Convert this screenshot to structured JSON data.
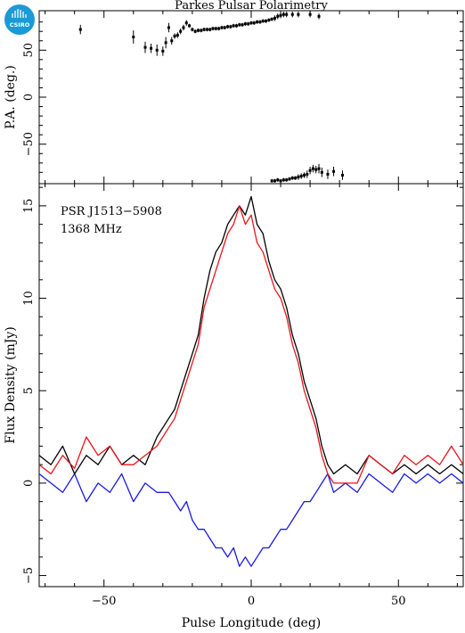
{
  "title": "Parkes Pulsar Polarimetry",
  "logo": {
    "text": "CSIRO",
    "color": "#1a9ad6"
  },
  "colors": {
    "total": "#000000",
    "linear": "#e8141b",
    "circular": "#1a1adf"
  },
  "chart_data": [
    {
      "type": "scatter",
      "title": "Parkes Pulsar Polarimetry",
      "xlabel": "",
      "ylabel": "P.A. (deg.)",
      "xlim": [
        -72,
        72
      ],
      "ylim": [
        -92,
        92
      ],
      "yticks": [
        -50,
        0,
        50
      ],
      "ytick_labels": [
        "−50",
        "0",
        "50"
      ],
      "points": [
        {
          "x": -58,
          "y": 72,
          "err": 5
        },
        {
          "x": -40,
          "y": 64,
          "err": 7
        },
        {
          "x": -36,
          "y": 53,
          "err": 6
        },
        {
          "x": -34,
          "y": 52,
          "err": 5
        },
        {
          "x": -32,
          "y": 50,
          "err": 6
        },
        {
          "x": -30,
          "y": 49,
          "err": 5
        },
        {
          "x": -29,
          "y": 58,
          "err": 6
        },
        {
          "x": -28,
          "y": 74,
          "err": 5
        },
        {
          "x": -27,
          "y": 60,
          "err": 4
        },
        {
          "x": -26,
          "y": 65,
          "err": 3
        },
        {
          "x": -25,
          "y": 66,
          "err": 3
        },
        {
          "x": -24,
          "y": 70,
          "err": 3
        },
        {
          "x": -23,
          "y": 74,
          "err": 3
        },
        {
          "x": -22,
          "y": 79,
          "err": 3
        },
        {
          "x": -21,
          "y": 76,
          "err": 2
        },
        {
          "x": -20,
          "y": 72,
          "err": 2
        },
        {
          "x": -19,
          "y": 70,
          "err": 2
        },
        {
          "x": -18,
          "y": 71,
          "err": 2
        },
        {
          "x": -17,
          "y": 71,
          "err": 2
        },
        {
          "x": -16,
          "y": 72,
          "err": 2
        },
        {
          "x": -15,
          "y": 72,
          "err": 2
        },
        {
          "x": -14,
          "y": 72,
          "err": 2
        },
        {
          "x": -13,
          "y": 73,
          "err": 2
        },
        {
          "x": -12,
          "y": 73,
          "err": 2
        },
        {
          "x": -11,
          "y": 73,
          "err": 2
        },
        {
          "x": -10,
          "y": 74,
          "err": 2
        },
        {
          "x": -9,
          "y": 74,
          "err": 2
        },
        {
          "x": -8,
          "y": 75,
          "err": 2
        },
        {
          "x": -7,
          "y": 75,
          "err": 2
        },
        {
          "x": -6,
          "y": 76,
          "err": 2
        },
        {
          "x": -5,
          "y": 76,
          "err": 2
        },
        {
          "x": -4,
          "y": 77,
          "err": 2
        },
        {
          "x": -3,
          "y": 77,
          "err": 2
        },
        {
          "x": -2,
          "y": 78,
          "err": 2
        },
        {
          "x": -1,
          "y": 78,
          "err": 2
        },
        {
          "x": 0,
          "y": 79,
          "err": 2
        },
        {
          "x": 1,
          "y": 79,
          "err": 2
        },
        {
          "x": 2,
          "y": 80,
          "err": 2
        },
        {
          "x": 3,
          "y": 80,
          "err": 2
        },
        {
          "x": 4,
          "y": 81,
          "err": 2
        },
        {
          "x": 5,
          "y": 81,
          "err": 2
        },
        {
          "x": 6,
          "y": 82,
          "err": 2
        },
        {
          "x": 7,
          "y": 83,
          "err": 2
        },
        {
          "x": 8,
          "y": 84,
          "err": 3
        },
        {
          "x": 9,
          "y": 86,
          "err": 3
        },
        {
          "x": 10,
          "y": 87,
          "err": 3
        },
        {
          "x": 11,
          "y": 88,
          "err": 3
        },
        {
          "x": 12,
          "y": 88,
          "err": 3
        },
        {
          "x": 14,
          "y": 88,
          "err": 3
        },
        {
          "x": 16,
          "y": 88,
          "err": 3
        },
        {
          "x": 20,
          "y": 88,
          "err": 3
        },
        {
          "x": 23,
          "y": 86,
          "err": 3
        },
        {
          "x": 7,
          "y": -89,
          "err": 2
        },
        {
          "x": 8,
          "y": -89,
          "err": 2
        },
        {
          "x": 9,
          "y": -88,
          "err": 2
        },
        {
          "x": 10,
          "y": -89,
          "err": 2
        },
        {
          "x": 11,
          "y": -88,
          "err": 2
        },
        {
          "x": 12,
          "y": -88,
          "err": 2
        },
        {
          "x": 13,
          "y": -87,
          "err": 2
        },
        {
          "x": 14,
          "y": -86,
          "err": 2
        },
        {
          "x": 15,
          "y": -86,
          "err": 2
        },
        {
          "x": 16,
          "y": -85,
          "err": 3
        },
        {
          "x": 17,
          "y": -84,
          "err": 3
        },
        {
          "x": 18,
          "y": -83,
          "err": 3
        },
        {
          "x": 19,
          "y": -82,
          "err": 4
        },
        {
          "x": 20,
          "y": -78,
          "err": 4
        },
        {
          "x": 21,
          "y": -76,
          "err": 4
        },
        {
          "x": 22,
          "y": -77,
          "err": 4
        },
        {
          "x": 23,
          "y": -76,
          "err": 5
        },
        {
          "x": 24,
          "y": -80,
          "err": 5
        },
        {
          "x": 26,
          "y": -82,
          "err": 5
        },
        {
          "x": 28,
          "y": -79,
          "err": 5
        },
        {
          "x": 31,
          "y": -83,
          "err": 5
        }
      ]
    },
    {
      "type": "line",
      "title": "",
      "annotations": [
        "PSR J1513−5908",
        "1368 MHz"
      ],
      "xlabel": "Pulse Longitude (deg)",
      "ylabel": "Flux Density (mJy)",
      "xlim": [
        -72,
        72
      ],
      "ylim": [
        -5.6,
        16.2
      ],
      "xticks": [
        -50,
        0,
        50
      ],
      "xtick_labels": [
        "−50",
        "0",
        "50"
      ],
      "yticks": [
        -5,
        0,
        5,
        10,
        15
      ],
      "ytick_labels": [
        "−5",
        "0",
        "5",
        "10",
        "15"
      ],
      "x": [
        -72,
        -68,
        -64,
        -60,
        -56,
        -52,
        -48,
        -44,
        -40,
        -36,
        -32,
        -28,
        -26,
        -24,
        -22,
        -20,
        -18,
        -16,
        -14,
        -12,
        -10,
        -8,
        -6,
        -4,
        -2,
        0,
        2,
        4,
        6,
        8,
        10,
        12,
        14,
        16,
        18,
        20,
        22,
        24,
        26,
        28,
        32,
        36,
        40,
        44,
        48,
        52,
        56,
        60,
        64,
        68,
        72
      ],
      "series": [
        {
          "key": "total",
          "values": [
            1.5,
            1.0,
            2.0,
            0.5,
            1.5,
            1.0,
            2.0,
            1.0,
            1.5,
            1.0,
            2.5,
            3.5,
            4.0,
            5.0,
            6.0,
            7.0,
            8.0,
            10.0,
            11.5,
            12.5,
            13.0,
            14.0,
            14.5,
            15.0,
            14.5,
            15.5,
            14.0,
            13.5,
            12.0,
            11.0,
            10.5,
            9.5,
            8.0,
            7.0,
            5.5,
            4.5,
            3.5,
            2.0,
            1.0,
            0.5,
            1.0,
            0.5,
            1.5,
            1.0,
            0.5,
            1.0,
            0.5,
            1.0,
            0.5,
            1.0,
            0.5
          ]
        },
        {
          "key": "linear",
          "values": [
            1.0,
            0.5,
            1.5,
            0.8,
            2.5,
            1.5,
            2.0,
            1.0,
            1.0,
            1.5,
            2.0,
            3.0,
            3.5,
            4.5,
            5.5,
            6.5,
            7.5,
            9.5,
            10.5,
            11.5,
            12.5,
            13.5,
            14.0,
            15.0,
            14.0,
            14.5,
            13.0,
            12.5,
            11.5,
            10.5,
            10.0,
            9.0,
            7.5,
            6.5,
            5.0,
            4.0,
            3.0,
            1.5,
            0.5,
            0.0,
            0.0,
            0.0,
            1.5,
            1.0,
            0.5,
            1.5,
            1.0,
            1.5,
            1.0,
            2.0,
            1.0
          ]
        },
        {
          "key": "circular",
          "values": [
            0.5,
            0.0,
            -0.5,
            0.5,
            -1.0,
            0.0,
            -0.5,
            0.5,
            -1.0,
            0.0,
            -0.5,
            -0.5,
            -1.0,
            -1.5,
            -1.0,
            -2.0,
            -2.5,
            -2.5,
            -3.0,
            -3.5,
            -3.5,
            -4.0,
            -3.5,
            -4.5,
            -4.0,
            -4.5,
            -4.0,
            -3.5,
            -3.5,
            -3.0,
            -2.5,
            -2.5,
            -2.0,
            -1.5,
            -1.0,
            -1.0,
            -0.5,
            0.0,
            0.5,
            -0.5,
            0.0,
            -0.5,
            0.5,
            0.0,
            -0.5,
            0.5,
            0.0,
            0.5,
            0.0,
            0.5,
            0.0
          ]
        }
      ]
    }
  ]
}
